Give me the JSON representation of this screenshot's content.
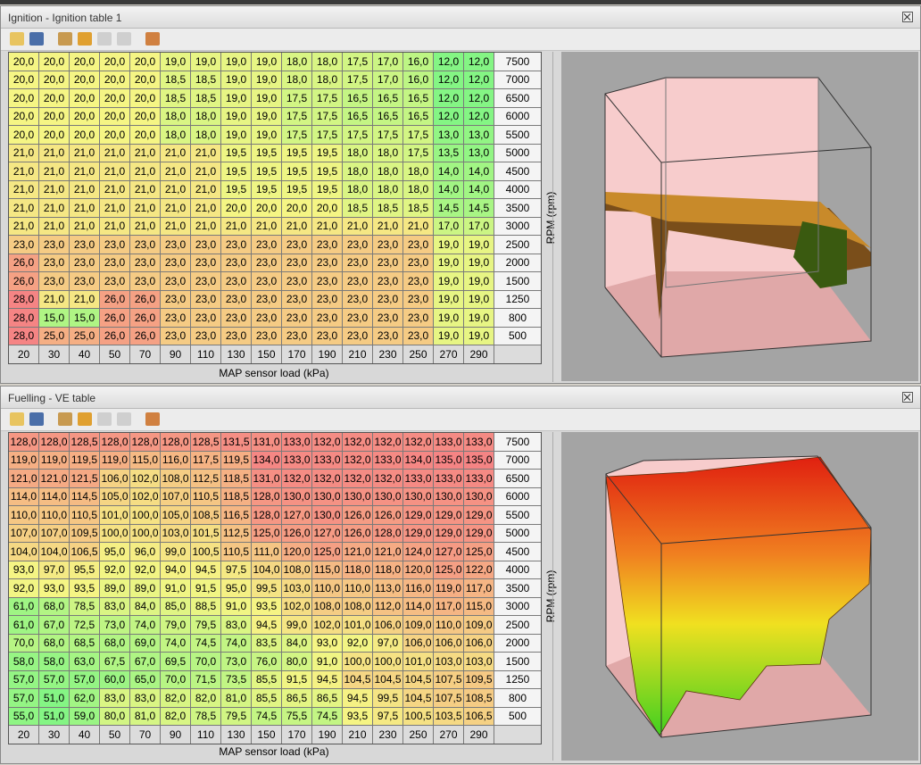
{
  "windows": [
    {
      "title": "Ignition - Ignition table 1",
      "y_label": "RPM (rpm)",
      "x_label": "MAP sensor load (kPa)",
      "rpm": [
        7500,
        7000,
        6500,
        6000,
        5500,
        5000,
        4500,
        4000,
        3500,
        3000,
        2500,
        2000,
        1500,
        1250,
        800,
        500
      ],
      "map": [
        20,
        30,
        40,
        50,
        70,
        90,
        110,
        130,
        150,
        170,
        190,
        210,
        230,
        250,
        270,
        290
      ],
      "rows": [
        [
          "20,0",
          "20,0",
          "20,0",
          "20,0",
          "20,0",
          "19,0",
          "19,0",
          "19,0",
          "19,0",
          "18,0",
          "18,0",
          "17,5",
          "17,0",
          "16,0",
          "12,0",
          "12,0"
        ],
        [
          "20,0",
          "20,0",
          "20,0",
          "20,0",
          "20,0",
          "18,5",
          "18,5",
          "19,0",
          "19,0",
          "18,0",
          "18,0",
          "17,5",
          "17,0",
          "16,0",
          "12,0",
          "12,0"
        ],
        [
          "20,0",
          "20,0",
          "20,0",
          "20,0",
          "20,0",
          "18,5",
          "18,5",
          "19,0",
          "19,0",
          "17,5",
          "17,5",
          "16,5",
          "16,5",
          "16,5",
          "12,0",
          "12,0"
        ],
        [
          "20,0",
          "20,0",
          "20,0",
          "20,0",
          "20,0",
          "18,0",
          "18,0",
          "19,0",
          "19,0",
          "17,5",
          "17,5",
          "16,5",
          "16,5",
          "16,5",
          "12,0",
          "12,0"
        ],
        [
          "20,0",
          "20,0",
          "20,0",
          "20,0",
          "20,0",
          "18,0",
          "18,0",
          "19,0",
          "19,0",
          "17,5",
          "17,5",
          "17,5",
          "17,5",
          "17,5",
          "13,0",
          "13,0"
        ],
        [
          "21,0",
          "21,0",
          "21,0",
          "21,0",
          "21,0",
          "21,0",
          "21,0",
          "19,5",
          "19,5",
          "19,5",
          "19,5",
          "18,0",
          "18,0",
          "17,5",
          "13,5",
          "13,0"
        ],
        [
          "21,0",
          "21,0",
          "21,0",
          "21,0",
          "21,0",
          "21,0",
          "21,0",
          "19,5",
          "19,5",
          "19,5",
          "19,5",
          "18,0",
          "18,0",
          "18,0",
          "14,0",
          "14,0"
        ],
        [
          "21,0",
          "21,0",
          "21,0",
          "21,0",
          "21,0",
          "21,0",
          "21,0",
          "19,5",
          "19,5",
          "19,5",
          "19,5",
          "18,0",
          "18,0",
          "18,0",
          "14,0",
          "14,0"
        ],
        [
          "21,0",
          "21,0",
          "21,0",
          "21,0",
          "21,0",
          "21,0",
          "21,0",
          "20,0",
          "20,0",
          "20,0",
          "20,0",
          "18,5",
          "18,5",
          "18,5",
          "14,5",
          "14,5"
        ],
        [
          "21,0",
          "21,0",
          "21,0",
          "21,0",
          "21,0",
          "21,0",
          "21,0",
          "21,0",
          "21,0",
          "21,0",
          "21,0",
          "21,0",
          "21,0",
          "21,0",
          "17,0",
          "17,0"
        ],
        [
          "23,0",
          "23,0",
          "23,0",
          "23,0",
          "23,0",
          "23,0",
          "23,0",
          "23,0",
          "23,0",
          "23,0",
          "23,0",
          "23,0",
          "23,0",
          "23,0",
          "19,0",
          "19,0"
        ],
        [
          "26,0",
          "23,0",
          "23,0",
          "23,0",
          "23,0",
          "23,0",
          "23,0",
          "23,0",
          "23,0",
          "23,0",
          "23,0",
          "23,0",
          "23,0",
          "23,0",
          "19,0",
          "19,0"
        ],
        [
          "26,0",
          "23,0",
          "23,0",
          "23,0",
          "23,0",
          "23,0",
          "23,0",
          "23,0",
          "23,0",
          "23,0",
          "23,0",
          "23,0",
          "23,0",
          "23,0",
          "19,0",
          "19,0"
        ],
        [
          "28,0",
          "21,0",
          "21,0",
          "26,0",
          "26,0",
          "23,0",
          "23,0",
          "23,0",
          "23,0",
          "23,0",
          "23,0",
          "23,0",
          "23,0",
          "23,0",
          "19,0",
          "19,0"
        ],
        [
          "28,0",
          "15,0",
          "15,0",
          "26,0",
          "26,0",
          "23,0",
          "23,0",
          "23,0",
          "23,0",
          "23,0",
          "23,0",
          "23,0",
          "23,0",
          "23,0",
          "19,0",
          "19,0"
        ],
        [
          "28,0",
          "25,0",
          "25,0",
          "26,0",
          "26,0",
          "23,0",
          "23,0",
          "23,0",
          "23,0",
          "23,0",
          "23,0",
          "23,0",
          "23,0",
          "23,0",
          "19,0",
          "19,0"
        ]
      ]
    },
    {
      "title": "Fuelling - VE table",
      "y_label": "RPM (rpm)",
      "x_label": "MAP sensor load (kPa)",
      "rpm": [
        7500,
        7000,
        6500,
        6000,
        5500,
        5000,
        4500,
        4000,
        3500,
        3000,
        2500,
        2000,
        1500,
        1250,
        800,
        500
      ],
      "map": [
        20,
        30,
        40,
        50,
        70,
        90,
        110,
        130,
        150,
        170,
        190,
        210,
        230,
        250,
        270,
        290
      ],
      "rows": [
        [
          "128,0",
          "128,0",
          "128,5",
          "128,0",
          "128,0",
          "128,0",
          "128,5",
          "131,5",
          "131,0",
          "133,0",
          "132,0",
          "132,0",
          "132,0",
          "132,0",
          "133,0",
          "133,0"
        ],
        [
          "119,0",
          "119,0",
          "119,5",
          "119,0",
          "115,0",
          "116,0",
          "117,5",
          "119,5",
          "134,0",
          "133,0",
          "133,0",
          "132,0",
          "133,0",
          "134,0",
          "135,0",
          "135,0"
        ],
        [
          "121,0",
          "121,0",
          "121,5",
          "106,0",
          "102,0",
          "108,0",
          "112,5",
          "118,5",
          "131,0",
          "132,0",
          "132,0",
          "132,0",
          "132,0",
          "133,0",
          "133,0",
          "133,0"
        ],
        [
          "114,0",
          "114,0",
          "114,5",
          "105,0",
          "102,0",
          "107,0",
          "110,5",
          "118,5",
          "128,0",
          "130,0",
          "130,0",
          "130,0",
          "130,0",
          "130,0",
          "130,0",
          "130,0"
        ],
        [
          "110,0",
          "110,0",
          "110,5",
          "101,0",
          "100,0",
          "105,0",
          "108,5",
          "116,5",
          "128,0",
          "127,0",
          "130,0",
          "126,0",
          "126,0",
          "129,0",
          "129,0",
          "129,0"
        ],
        [
          "107,0",
          "107,0",
          "109,5",
          "100,0",
          "100,0",
          "103,0",
          "101,5",
          "112,5",
          "125,0",
          "126,0",
          "127,0",
          "126,0",
          "128,0",
          "129,0",
          "129,0",
          "129,0"
        ],
        [
          "104,0",
          "104,0",
          "106,5",
          "95,0",
          "96,0",
          "99,0",
          "100,5",
          "110,5",
          "111,0",
          "120,0",
          "125,0",
          "121,0",
          "121,0",
          "124,0",
          "127,0",
          "125,0"
        ],
        [
          "93,0",
          "97,0",
          "95,5",
          "92,0",
          "92,0",
          "94,0",
          "94,5",
          "97,5",
          "104,0",
          "108,0",
          "115,0",
          "118,0",
          "118,0",
          "120,0",
          "125,0",
          "122,0"
        ],
        [
          "92,0",
          "93,0",
          "93,5",
          "89,0",
          "89,0",
          "91,0",
          "91,5",
          "95,0",
          "99,5",
          "103,0",
          "110,0",
          "110,0",
          "113,0",
          "116,0",
          "119,0",
          "117,0"
        ],
        [
          "61,0",
          "68,0",
          "78,5",
          "83,0",
          "84,0",
          "85,0",
          "88,5",
          "91,0",
          "93,5",
          "102,0",
          "108,0",
          "108,0",
          "112,0",
          "114,0",
          "117,0",
          "115,0"
        ],
        [
          "61,0",
          "67,0",
          "72,5",
          "73,0",
          "74,0",
          "79,0",
          "79,5",
          "83,0",
          "94,5",
          "99,0",
          "102,0",
          "101,0",
          "106,0",
          "109,0",
          "110,0",
          "109,0"
        ],
        [
          "70,0",
          "68,0",
          "68,5",
          "68,0",
          "69,0",
          "74,0",
          "74,5",
          "74,0",
          "83,5",
          "84,0",
          "93,0",
          "92,0",
          "97,0",
          "106,0",
          "106,0",
          "106,0"
        ],
        [
          "58,0",
          "58,0",
          "63,0",
          "67,5",
          "67,0",
          "69,5",
          "70,0",
          "73,0",
          "76,0",
          "80,0",
          "91,0",
          "100,0",
          "100,0",
          "101,0",
          "103,0",
          "103,0"
        ],
        [
          "57,0",
          "57,0",
          "57,0",
          "60,0",
          "65,0",
          "70,0",
          "71,5",
          "73,5",
          "85,5",
          "91,5",
          "94,5",
          "104,5",
          "104,5",
          "104,5",
          "107,5",
          "109,5"
        ],
        [
          "57,0",
          "51,0",
          "62,0",
          "83,0",
          "83,0",
          "82,0",
          "82,0",
          "81,0",
          "85,5",
          "86,5",
          "86,5",
          "94,5",
          "99,5",
          "104,5",
          "107,5",
          "108,5"
        ],
        [
          "55,0",
          "51,0",
          "59,0",
          "80,0",
          "81,0",
          "82,0",
          "78,5",
          "79,5",
          "74,5",
          "75,5",
          "74,5",
          "93,5",
          "97,5",
          "100,5",
          "103,5",
          "106,5"
        ]
      ]
    }
  ]
}
